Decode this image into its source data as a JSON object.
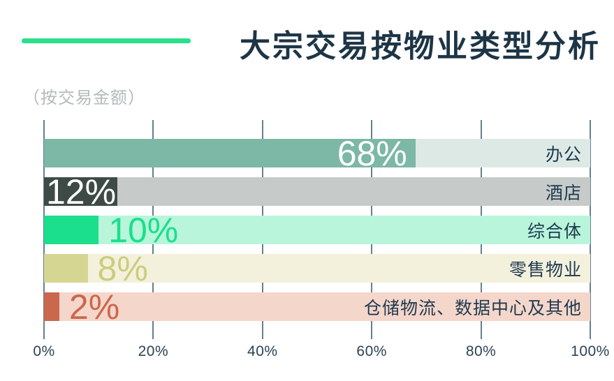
{
  "chart_data": {
    "type": "bar",
    "orientation": "horizontal",
    "title": "大宗交易按物业类型分析",
    "subtitle": "（按交易金额）",
    "title_color": "#1d3546",
    "accent_dash_color": "#2be08c",
    "category_label_color": "#1e3a50",
    "unit": "%",
    "categories": [
      "办公",
      "酒店",
      "综合体",
      "零售物业",
      "仓储物流、数据中心及其他"
    ],
    "values": [
      68,
      12,
      10,
      8,
      2
    ],
    "series": [
      {
        "category": "办公",
        "value": 68,
        "value_label": "68%",
        "fill_color": "#7db7a6",
        "track_color": "#dde9e5",
        "label_color": "#ffffff",
        "label_style": "inside-right"
      },
      {
        "category": "酒店",
        "value": 12,
        "value_label": "12%",
        "fill_color": "#3e4a46",
        "track_color": "#c6cbc9",
        "label_color": "#ffffff",
        "label_style": "inside-left",
        "fill_pct": 13.4
      },
      {
        "category": "综合体",
        "value": 10,
        "value_label": "10%",
        "fill_color": "#1bdf8c",
        "track_color": "#b8f5da",
        "label_color": "#1bdf8c",
        "label_style": "outside"
      },
      {
        "category": "零售物业",
        "value": 8,
        "value_label": "8%",
        "fill_color": "#d5d692",
        "track_color": "#f3f1dc",
        "label_color": "#c9ce7d",
        "label_style": "outside"
      },
      {
        "category": "仓储物流、数据中心及其他",
        "value": 2,
        "value_label": "2%",
        "fill_color": "#ca684d",
        "track_color": "#f5d6ca",
        "label_color": "#ca684d",
        "label_style": "outside",
        "fill_pct": 2.8
      }
    ],
    "x_axis": {
      "tick_labels": [
        "0%",
        "20%",
        "40%",
        "60%",
        "80%",
        "100%"
      ],
      "tick_values": [
        0,
        20,
        40,
        60,
        80,
        100
      ],
      "range": [
        0,
        100
      ],
      "grid": true,
      "gridline_color": "#64808f",
      "tick_label_color": "#2b4254"
    },
    "legend": "none"
  }
}
